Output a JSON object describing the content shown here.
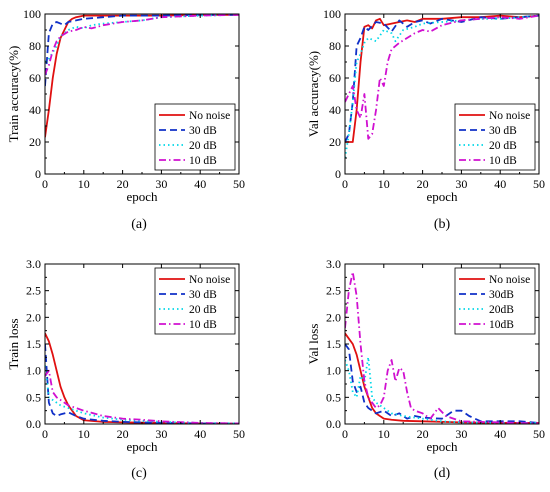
{
  "chart_data": [
    {
      "type": "line",
      "panel_label": "(a)",
      "xlabel": "epoch",
      "ylabel": "Train accuracy(%)",
      "xlim": [
        0,
        50
      ],
      "ylim": [
        0,
        100
      ],
      "xticks": [
        "0",
        "10",
        "20",
        "30",
        "40",
        "50"
      ],
      "yticks": [
        "0",
        "20",
        "40",
        "60",
        "80",
        "100"
      ],
      "legend_position": "bottom-right",
      "series": [
        {
          "name": "No noise",
          "color": "#e01010",
          "style": "solid",
          "x": [
            0,
            1,
            2,
            3,
            4,
            5,
            6,
            7,
            8,
            10,
            15,
            20,
            30,
            40,
            50
          ],
          "y": [
            23,
            40,
            60,
            75,
            85,
            90,
            95,
            97,
            98,
            99,
            99,
            99,
            99,
            99.5,
            99.5
          ]
        },
        {
          "name": "30 dB",
          "color": "#1030c8",
          "style": "dash",
          "x": [
            0,
            1,
            2,
            3,
            4,
            5,
            6,
            8,
            10,
            15,
            20,
            30,
            40,
            50
          ],
          "y": [
            55,
            88,
            94,
            95,
            94,
            93,
            95,
            96,
            97,
            98,
            99,
            99,
            99.5,
            99.5
          ]
        },
        {
          "name": "20 dB",
          "color": "#00d8e8",
          "style": "dot",
          "x": [
            0,
            1,
            2,
            3,
            4,
            6,
            8,
            10,
            12,
            15,
            20,
            25,
            30,
            40,
            50
          ],
          "y": [
            70,
            72,
            76,
            80,
            86,
            90,
            92,
            91,
            93,
            94,
            95,
            96,
            98,
            99,
            99.5
          ]
        },
        {
          "name": "10 dB",
          "color": "#d010d0",
          "style": "dashdot",
          "x": [
            0,
            1,
            2,
            3,
            4,
            6,
            8,
            10,
            12,
            15,
            20,
            25,
            30,
            40,
            50
          ],
          "y": [
            62,
            68,
            77,
            83,
            86,
            89,
            90,
            92,
            91,
            93,
            95,
            96,
            98,
            99,
            99.5
          ]
        }
      ]
    },
    {
      "type": "line",
      "panel_label": "(b)",
      "xlabel": "epoch",
      "ylabel": "Val accuracy(%)",
      "xlim": [
        0,
        50
      ],
      "ylim": [
        0,
        100
      ],
      "xticks": [
        "0",
        "10",
        "20",
        "30",
        "40",
        "50"
      ],
      "yticks": [
        "0",
        "20",
        "40",
        "60",
        "80",
        "100"
      ],
      "legend_position": "bottom-right",
      "series": [
        {
          "name": "No noise",
          "color": "#e01010",
          "style": "solid",
          "x": [
            0,
            1,
            2,
            3,
            4,
            5,
            6,
            7,
            8,
            9,
            10,
            12,
            14,
            16,
            18,
            20,
            25,
            30,
            35,
            40,
            45,
            50
          ],
          "y": [
            20,
            20,
            20,
            40,
            70,
            92,
            93,
            91,
            96,
            97,
            93,
            94,
            95,
            96,
            95,
            97,
            97,
            98,
            98,
            99,
            98,
            99
          ]
        },
        {
          "name": "30 dB",
          "color": "#1030c8",
          "style": "dash",
          "x": [
            0,
            1,
            2,
            3,
            4,
            5,
            6,
            8,
            10,
            12,
            14,
            16,
            18,
            20,
            22,
            25,
            30,
            35,
            40,
            45,
            50
          ],
          "y": [
            20,
            25,
            45,
            80,
            85,
            92,
            90,
            95,
            94,
            89,
            96,
            92,
            95,
            96,
            94,
            97,
            95,
            98,
            97,
            98,
            99
          ]
        },
        {
          "name": "20 dB",
          "color": "#00d8e8",
          "style": "dot",
          "x": [
            0,
            1,
            2,
            3,
            4,
            5,
            6,
            8,
            10,
            12,
            13,
            15,
            18,
            20,
            25,
            30,
            35,
            40,
            45,
            50
          ],
          "y": [
            10,
            25,
            45,
            70,
            75,
            82,
            85,
            83,
            90,
            88,
            83,
            90,
            92,
            94,
            95,
            96,
            97,
            97,
            98,
            99
          ]
        },
        {
          "name": "10 dB",
          "color": "#d010d0",
          "style": "dashdot",
          "x": [
            0,
            1,
            2,
            3,
            4,
            5,
            6,
            7,
            8,
            9,
            10,
            11,
            12,
            14,
            16,
            18,
            20,
            22,
            25,
            30,
            35,
            40,
            45,
            50
          ],
          "y": [
            45,
            50,
            55,
            40,
            35,
            50,
            22,
            25,
            40,
            60,
            55,
            70,
            78,
            82,
            85,
            88,
            90,
            89,
            93,
            96,
            97,
            98,
            97,
            99
          ]
        }
      ]
    },
    {
      "type": "line",
      "panel_label": "(c)",
      "xlabel": "epoch",
      "ylabel": "Train loss",
      "xlim": [
        0,
        50
      ],
      "ylim": [
        0,
        3.0
      ],
      "xticks": [
        "0",
        "10",
        "20",
        "30",
        "40",
        "50"
      ],
      "yticks": [
        "0.0",
        "0.5",
        "1.0",
        "1.5",
        "2.0",
        "2.5",
        "3.0"
      ],
      "legend_position": "top-right",
      "series": [
        {
          "name": "No noise",
          "color": "#e01010",
          "style": "solid",
          "x": [
            0,
            1,
            2,
            3,
            4,
            5,
            6,
            8,
            10,
            15,
            20,
            30,
            40,
            50
          ],
          "y": [
            1.7,
            1.55,
            1.3,
            1.0,
            0.7,
            0.5,
            0.35,
            0.15,
            0.07,
            0.04,
            0.03,
            0.02,
            0.01,
            0.01
          ]
        },
        {
          "name": "30 dB",
          "color": "#1030c8",
          "style": "dash",
          "x": [
            0,
            1,
            2,
            3,
            4,
            5,
            6,
            8,
            10,
            15,
            20,
            30,
            40,
            50
          ],
          "y": [
            1.5,
            0.4,
            0.2,
            0.15,
            0.18,
            0.2,
            0.22,
            0.15,
            0.1,
            0.06,
            0.04,
            0.02,
            0.01,
            0.01
          ]
        },
        {
          "name": "20 dB",
          "color": "#00d8e8",
          "style": "dot",
          "x": [
            0,
            1,
            2,
            3,
            4,
            6,
            8,
            10,
            15,
            20,
            30,
            40,
            50
          ],
          "y": [
            1.1,
            0.5,
            0.45,
            0.4,
            0.35,
            0.3,
            0.25,
            0.2,
            0.12,
            0.08,
            0.04,
            0.02,
            0.01
          ]
        },
        {
          "name": "10 dB",
          "color": "#d010d0",
          "style": "dashdot",
          "x": [
            0,
            1,
            2,
            3,
            4,
            5,
            6,
            8,
            10,
            15,
            20,
            25,
            30,
            40,
            50
          ],
          "y": [
            0.9,
            1.0,
            0.6,
            0.5,
            0.45,
            0.4,
            0.35,
            0.3,
            0.25,
            0.15,
            0.1,
            0.08,
            0.05,
            0.02,
            0.01
          ]
        }
      ]
    },
    {
      "type": "line",
      "panel_label": "(d)",
      "xlabel": "epoch",
      "ylabel": "Val loss",
      "xlim": [
        0,
        50
      ],
      "ylim": [
        0,
        3.0
      ],
      "xticks": [
        "0",
        "10",
        "20",
        "30",
        "40",
        "50"
      ],
      "yticks": [
        "0.0",
        "0.5",
        "1.0",
        "1.5",
        "2.0",
        "2.5",
        "3.0"
      ],
      "legend_position": "top-right",
      "series": [
        {
          "name": "No noise",
          "color": "#e01010",
          "style": "solid",
          "x": [
            0,
            1,
            2,
            3,
            4,
            5,
            6,
            7,
            8,
            10,
            12,
            15,
            20,
            30,
            40,
            50
          ],
          "y": [
            1.7,
            1.6,
            1.5,
            1.3,
            1.0,
            0.7,
            0.5,
            0.3,
            0.2,
            0.1,
            0.08,
            0.06,
            0.05,
            0.03,
            0.02,
            0.02
          ]
        },
        {
          "name": "30dB",
          "color": "#1030c8",
          "style": "dash",
          "x": [
            0,
            1,
            2,
            3,
            4,
            5,
            6,
            8,
            10,
            12,
            14,
            16,
            18,
            20,
            25,
            28,
            30,
            32,
            35,
            40,
            45,
            50
          ],
          "y": [
            1.5,
            1.4,
            0.8,
            0.6,
            0.7,
            0.4,
            0.3,
            0.2,
            0.25,
            0.15,
            0.2,
            0.1,
            0.15,
            0.12,
            0.1,
            0.25,
            0.25,
            0.15,
            0.05,
            0.05,
            0.05,
            0.02
          ]
        },
        {
          "name": "20dB",
          "color": "#00d8e8",
          "style": "dot",
          "x": [
            0,
            1,
            2,
            3,
            4,
            5,
            6,
            7,
            8,
            9,
            10,
            12,
            15,
            20,
            25,
            30,
            40,
            50
          ],
          "y": [
            1.2,
            1.0,
            0.6,
            0.5,
            0.9,
            0.8,
            1.25,
            0.5,
            0.4,
            0.35,
            0.3,
            0.2,
            0.15,
            0.1,
            0.05,
            0.03,
            0.02,
            0.02
          ]
        },
        {
          "name": "10dB",
          "color": "#d010d0",
          "style": "dashdot",
          "x": [
            0,
            1,
            2,
            3,
            4,
            5,
            6,
            7,
            8,
            9,
            10,
            11,
            12,
            13,
            14,
            15,
            16,
            17,
            18,
            20,
            22,
            24,
            26,
            30,
            35,
            40,
            45,
            50
          ],
          "y": [
            1.8,
            2.5,
            2.85,
            2.4,
            1.5,
            0.8,
            0.5,
            0.4,
            0.3,
            0.35,
            0.5,
            1.0,
            1.2,
            0.8,
            1.05,
            1.0,
            0.6,
            0.3,
            0.25,
            0.2,
            0.1,
            0.3,
            0.15,
            0.05,
            0.04,
            0.03,
            0.02,
            0.01
          ]
        }
      ]
    }
  ]
}
